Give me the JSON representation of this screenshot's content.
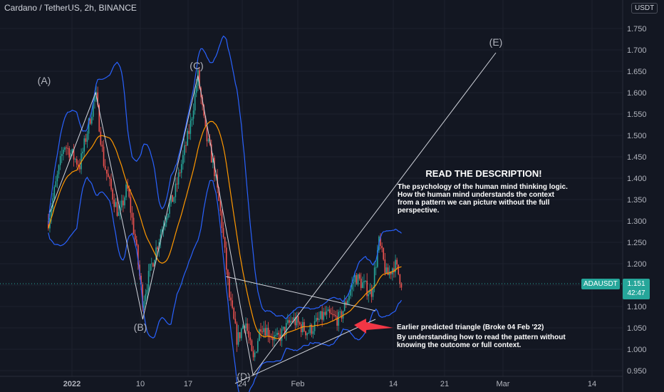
{
  "header": {
    "title": "Cardano / TetherUS, 2h, BINANCE",
    "currency": "USDT",
    "currency_prefix": "1"
  },
  "price_badge": {
    "symbol": "ADAUSDT",
    "price": "1.151",
    "countdown": "42:47"
  },
  "colors": {
    "background": "#131722",
    "bull": "#26a69a",
    "bear": "#ef5350",
    "bollinger": "#2962ff",
    "ma": "#ff9800",
    "pattern_line": "#d1d4dc",
    "arrow": "#f23645"
  },
  "chart_data": {
    "type": "candlestick",
    "title": "Cardano / TetherUS, 2h, BINANCE",
    "ylim": [
      0.93,
      1.8
    ],
    "y_ticks": [
      "1.750",
      "1.700",
      "1.650",
      "1.600",
      "1.550",
      "1.500",
      "1.450",
      "1.400",
      "1.350",
      "1.300",
      "1.250",
      "1.200",
      "1.150",
      "1.100",
      "1.050",
      "1.000",
      "0.950"
    ],
    "x_ticks": [
      "2022",
      "10",
      "17",
      "24",
      "Feb",
      "14",
      "21",
      "Mar",
      "14"
    ],
    "last_price": 1.151,
    "price_path": [
      [
        "Dec 29",
        1.3
      ],
      [
        "Dec 31",
        1.48
      ],
      [
        "Jan 02",
        1.43
      ],
      [
        "Jan 04",
        1.6
      ],
      [
        "Jan 05",
        1.44
      ],
      [
        "Jan 06",
        1.37
      ],
      [
        "Jan 07",
        1.31
      ],
      [
        "Jan 08",
        1.38
      ],
      [
        "Jan 09",
        1.26
      ],
      [
        "Jan 10",
        1.11
      ],
      [
        "Jan 11",
        1.19
      ],
      [
        "Jan 13",
        1.32
      ],
      [
        "Jan 14",
        1.36
      ],
      [
        "Jan 16",
        1.52
      ],
      [
        "Jan 17",
        1.64
      ],
      [
        "Jan 18",
        1.5
      ],
      [
        "Jan 19",
        1.43
      ],
      [
        "Jan 20",
        1.3
      ],
      [
        "Jan 21",
        1.12
      ],
      [
        "Jan 22",
        1.02
      ],
      [
        "Jan 23",
        1.07
      ],
      [
        "Jan 24",
        0.97
      ],
      [
        "Jan 25",
        1.06
      ],
      [
        "Jan 27",
        1.02
      ],
      [
        "Jan 29",
        1.07
      ],
      [
        "Jan 31",
        1.04
      ],
      [
        "Feb 02",
        1.08
      ],
      [
        "Feb 04",
        1.07
      ],
      [
        "Feb 06",
        1.17
      ],
      [
        "Feb 08",
        1.13
      ],
      [
        "Feb 09",
        1.25
      ],
      [
        "Feb 10",
        1.17
      ],
      [
        "Feb 11",
        1.2
      ],
      [
        "Feb 12",
        1.15
      ]
    ],
    "waves": [
      {
        "label": "(A)",
        "price": 1.6
      },
      {
        "label": "(B)",
        "price": 1.07
      },
      {
        "label": "(C)",
        "price": 1.64
      },
      {
        "label": "(D)",
        "price": 0.94
      },
      {
        "label": "(E)",
        "price": 1.7
      }
    ],
    "triangle": {
      "upper_start": 1.17,
      "lower_start": 0.94,
      "apex": 1.09,
      "label": "Earlier predicted triangle (Broke 04 Feb '22)"
    },
    "annotations": {
      "heading": "READ THE DESCRIPTION!",
      "desc_lines": [
        "The psychology of the human mind thinking logic.",
        "How the human mind understands the context",
        "from a pattern we can picture without the full",
        "perspective."
      ],
      "triangle_lines": [
        "Earlier predicted triangle (Broke 04 Feb '22)",
        "By understanding how to read the pattern without",
        "knowing the outcome or full context."
      ]
    }
  }
}
